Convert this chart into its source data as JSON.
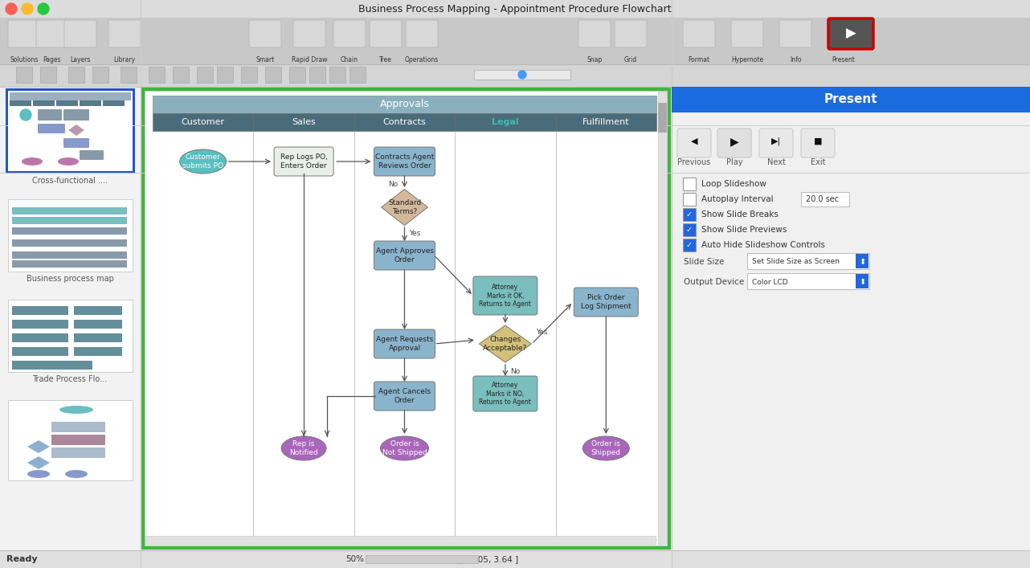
{
  "title": "Business Process Mapping - Appointment Procedure Flowchart",
  "window_bg": "#e8e8e8",
  "titlebar_bg": "#d0d0d0",
  "titlebar_text_color": "#222222",
  "toolbar_bg": "#c8c8c8",
  "sidebar_bg": "#f0f0f0",
  "present_panel_bg": "#1a6bdd",
  "present_panel_title": "Present",
  "traffic_light_colors": [
    "#ff5f57",
    "#febc2e",
    "#28c840"
  ],
  "main_canvas_bg": "#ffffff",
  "main_canvas_border": "#3cb83c",
  "swimlane_header_bg": "#4a6b7a",
  "swimlane_header_text": "#ffffff",
  "swimlane_approvals_bg": "#8ab0be",
  "swimlane_legal_text": "#3dbdb0",
  "swimlane_cols": [
    "Customer",
    "Sales",
    "Contracts",
    "Legal",
    "Fulfillment"
  ],
  "statusbar_bg": "#e0e0e0",
  "statusbar_text": "Ready"
}
